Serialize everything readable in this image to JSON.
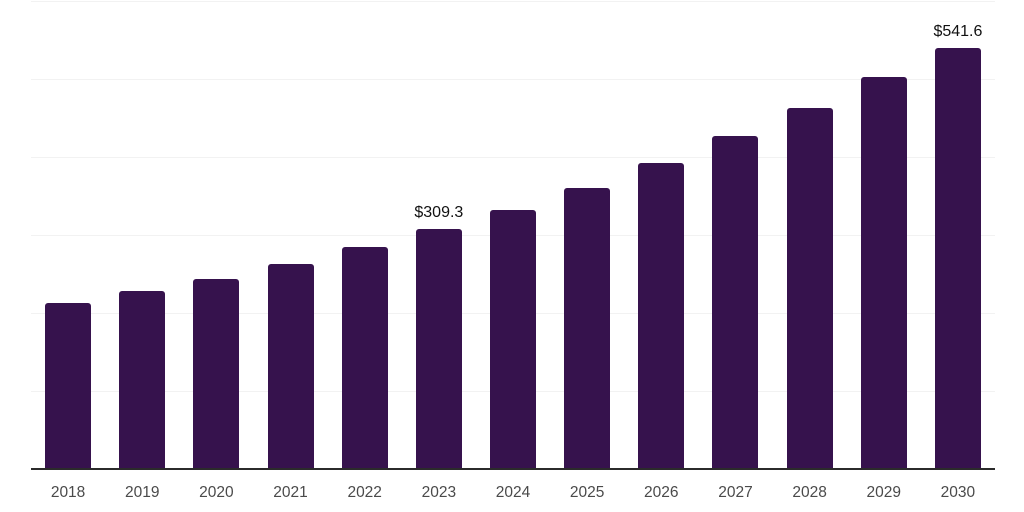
{
  "chart_data": {
    "type": "bar",
    "title": "",
    "xlabel": "",
    "ylabel": "",
    "categories": [
      "2018",
      "2019",
      "2020",
      "2021",
      "2022",
      "2023",
      "2024",
      "2025",
      "2026",
      "2027",
      "2028",
      "2029",
      "2030"
    ],
    "values": [
      214.4,
      229.8,
      245.1,
      264.2,
      285.9,
      309.3,
      333.1,
      361.2,
      393.1,
      427.6,
      464.6,
      504.2,
      541.6
    ],
    "point_labels": {
      "2023": "$309.3",
      "2030": "$541.6"
    },
    "ylim": [
      0,
      600
    ],
    "gridline_interval": 100,
    "grid": "horizontal-only",
    "y_tick_labels_visible": false,
    "legend_position": "none",
    "bar_color": "#36124d",
    "axis_line_color": "#2b2b2b",
    "gridline_color": "#f2f2f2",
    "tick_label_color": "#4a4a4a",
    "value_label_color": "#111111",
    "background_color": "#ffffff"
  }
}
